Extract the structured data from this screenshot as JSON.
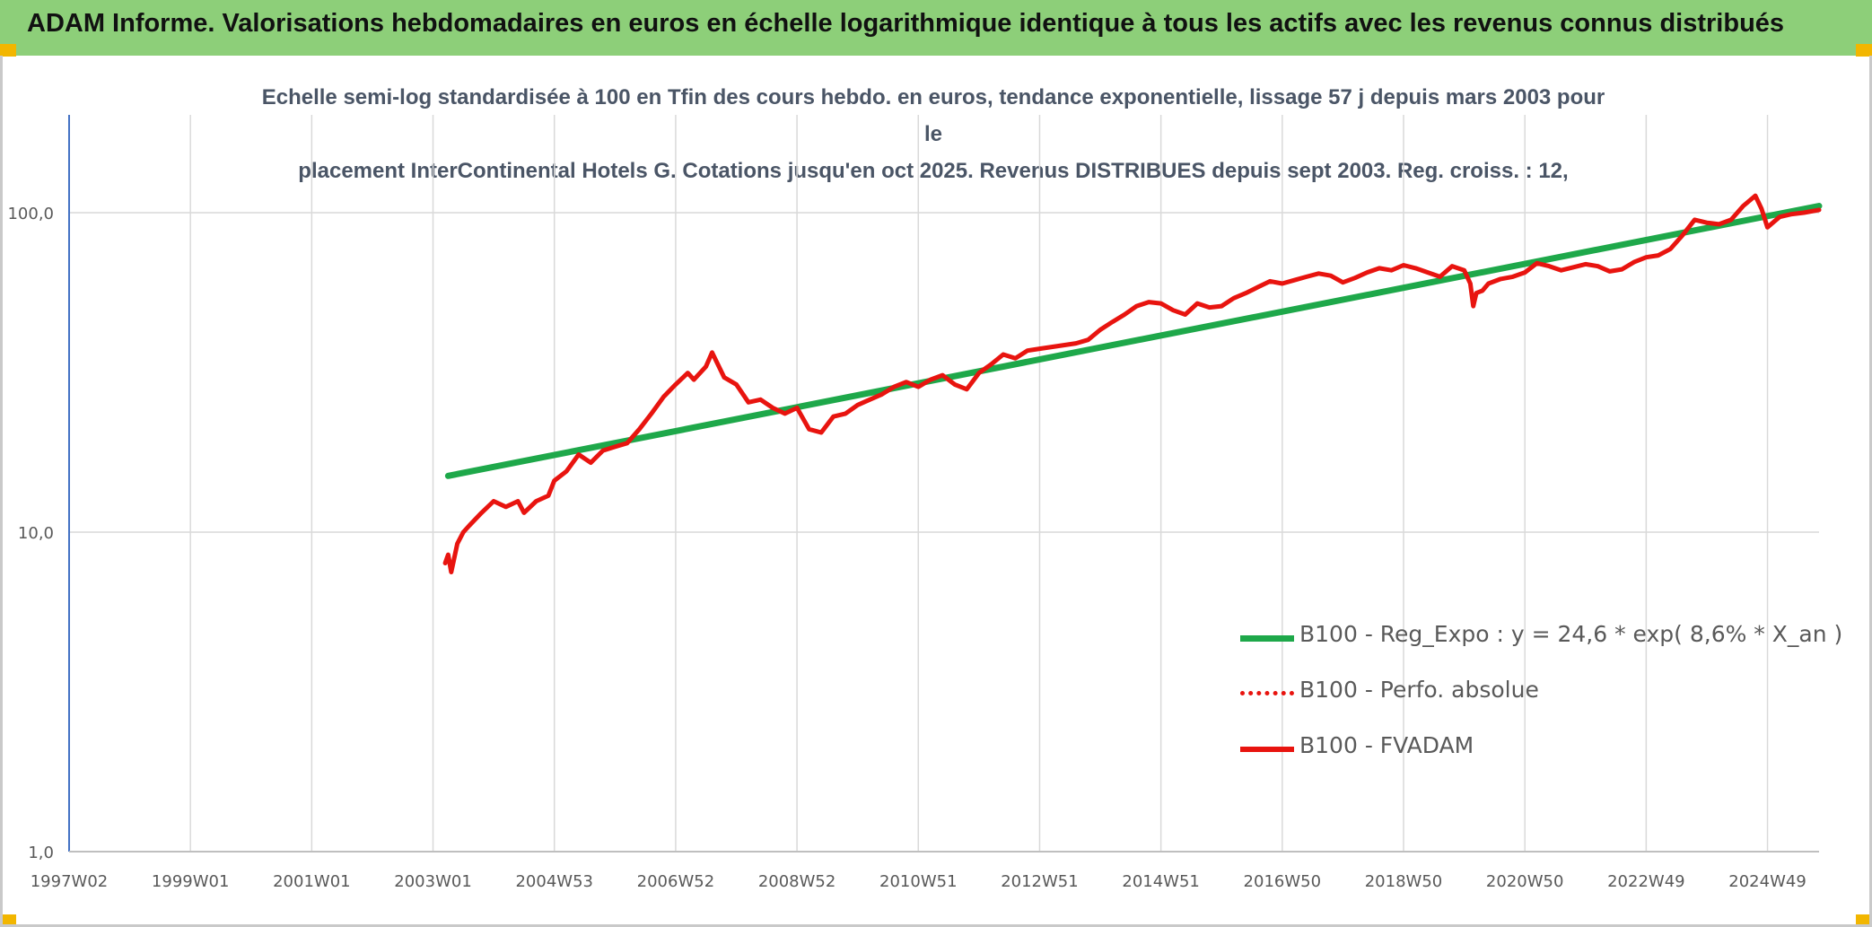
{
  "header": {
    "title": "ADAM Informe. Valorisations hebdomadaires en euros en échelle logarithmique identique à tous les actifs avec les revenus connus distribués"
  },
  "colors": {
    "title_bar": "#8dcf79",
    "corner_accent": "#f2b600",
    "trend_line": "#1ea84a",
    "fvadam_line": "#e8140f",
    "perfo_line": "#e8140f",
    "axis": "#4472c4",
    "grid": "#d9d9d9"
  },
  "chart_data": {
    "type": "line",
    "title_lines": [
      "Echelle semi-log standardisée à 100 en Tfin des cours hebdo. en euros, tendance exponentielle, lissage 57 j depuis mars 2003 pour le",
      "placement InterContinental Hotels G. Cotations jusqu'en oct 2025. Revenus DISTRIBUES depuis sept 2003. Reg. croiss. : 12,"
    ],
    "y_scale": "log",
    "ylim": [
      1,
      200
    ],
    "y_ticks": [
      1,
      10,
      100
    ],
    "y_tick_labels": [
      "1,0",
      "10,0",
      "100,0"
    ],
    "xlim": [
      1997.0,
      2025.85
    ],
    "x_ticks": [
      1997.0,
      1999.0,
      2001.0,
      2003.0,
      2005.0,
      2007.0,
      2009.0,
      2011.0,
      2013.0,
      2015.0,
      2017.0,
      2019.0,
      2021.0,
      2023.0,
      2025.0
    ],
    "x_tick_labels": [
      "1997W02",
      "1999W01",
      "2001W01",
      "2003W01",
      "2004W53",
      "2006W52",
      "2008W52",
      "2010W51",
      "2012W51",
      "2014W51",
      "2016W50",
      "2018W50",
      "2020W50",
      "2022W49",
      "2024W49"
    ],
    "grid": true,
    "legend_position": "bottom-right",
    "series": [
      {
        "name": "B100 - Reg_Expo : y = 24,6 * exp( 8,6% *  X_an )",
        "style": "solid-thick",
        "color": "#1ea84a",
        "x": [
          2003.25,
          2025.85
        ],
        "y": [
          15.0,
          105.0
        ]
      },
      {
        "name": "B100 - Perfo. absolue",
        "style": "dotted",
        "color": "#e8140f",
        "x": [],
        "y": []
      },
      {
        "name": "B100 - FVADAM",
        "style": "solid",
        "color": "#e8140f",
        "x": [
          2003.2,
          2003.25,
          2003.3,
          2003.4,
          2003.5,
          2003.6,
          2003.8,
          2004.0,
          2004.2,
          2004.4,
          2004.5,
          2004.7,
          2004.9,
          2005.0,
          2005.2,
          2005.4,
          2005.6,
          2005.8,
          2006.0,
          2006.2,
          2006.4,
          2006.6,
          2006.8,
          2007.0,
          2007.2,
          2007.3,
          2007.5,
          2007.6,
          2007.8,
          2008.0,
          2008.2,
          2008.4,
          2008.6,
          2008.8,
          2009.0,
          2009.2,
          2009.4,
          2009.6,
          2009.8,
          2010.0,
          2010.2,
          2010.4,
          2010.6,
          2010.8,
          2011.0,
          2011.2,
          2011.4,
          2011.6,
          2011.8,
          2012.0,
          2012.2,
          2012.4,
          2012.6,
          2012.8,
          2013.0,
          2013.2,
          2013.4,
          2013.6,
          2013.8,
          2014.0,
          2014.2,
          2014.4,
          2014.6,
          2014.8,
          2015.0,
          2015.2,
          2015.4,
          2015.6,
          2015.8,
          2016.0,
          2016.2,
          2016.4,
          2016.6,
          2016.8,
          2017.0,
          2017.2,
          2017.4,
          2017.6,
          2017.8,
          2018.0,
          2018.2,
          2018.4,
          2018.6,
          2018.8,
          2019.0,
          2019.2,
          2019.4,
          2019.6,
          2019.8,
          2020.0,
          2020.1,
          2020.15,
          2020.2,
          2020.3,
          2020.4,
          2020.6,
          2020.8,
          2021.0,
          2021.2,
          2021.4,
          2021.6,
          2021.8,
          2022.0,
          2022.2,
          2022.4,
          2022.6,
          2022.8,
          2023.0,
          2023.2,
          2023.4,
          2023.6,
          2023.8,
          2024.0,
          2024.2,
          2024.4,
          2024.6,
          2024.8,
          2024.9,
          2025.0,
          2025.2,
          2025.4,
          2025.6,
          2025.85
        ],
        "y": [
          8.0,
          8.5,
          7.5,
          9.2,
          10.0,
          10.5,
          11.5,
          12.5,
          12.0,
          12.5,
          11.5,
          12.5,
          13.0,
          14.5,
          15.5,
          17.5,
          16.5,
          18.0,
          18.5,
          19.0,
          21.0,
          23.5,
          26.5,
          29.0,
          31.5,
          30.0,
          33.0,
          36.5,
          30.5,
          29.0,
          25.5,
          26.0,
          24.5,
          23.5,
          24.5,
          21.0,
          20.5,
          23.0,
          23.5,
          25.0,
          26.0,
          27.0,
          28.5,
          29.5,
          28.5,
          30.0,
          31.0,
          29.0,
          28.0,
          31.5,
          33.5,
          36.0,
          35.0,
          37.0,
          37.5,
          38.0,
          38.5,
          39.0,
          40.0,
          43.0,
          45.5,
          48.0,
          51.0,
          52.5,
          52.0,
          49.5,
          48.0,
          52.0,
          50.5,
          51.0,
          54.0,
          56.0,
          58.5,
          61.0,
          60.0,
          61.5,
          63.0,
          64.5,
          63.5,
          60.5,
          62.5,
          65.0,
          67.0,
          66.0,
          68.5,
          67.0,
          65.0,
          63.0,
          68.0,
          66.0,
          60.0,
          51.0,
          56.0,
          57.0,
          60.0,
          62.0,
          63.0,
          65.0,
          69.5,
          68.0,
          66.0,
          67.5,
          69.0,
          68.0,
          65.5,
          66.5,
          70.0,
          72.5,
          73.5,
          77.0,
          85.0,
          95.0,
          93.0,
          92.0,
          95.0,
          105.0,
          113.0,
          103.0,
          90.0,
          97.0,
          99.0,
          100.0,
          102.0
        ]
      }
    ]
  }
}
